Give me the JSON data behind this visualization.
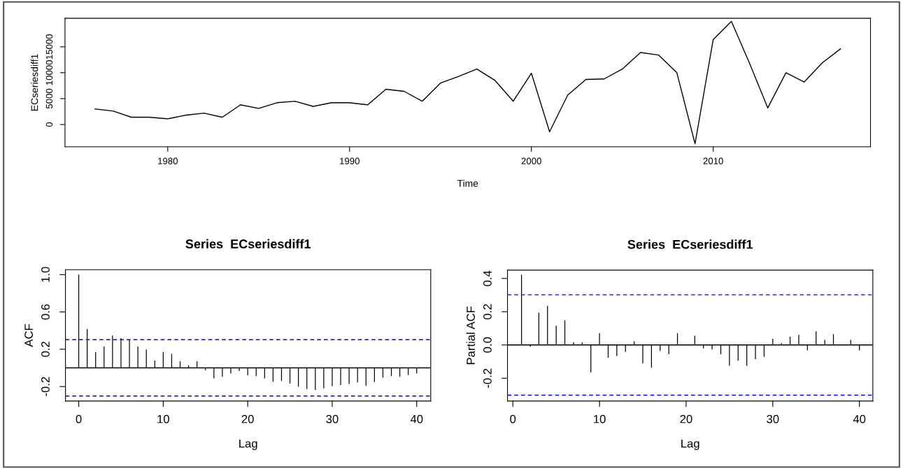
{
  "chart_data": [
    {
      "type": "line",
      "xlabel": "Time",
      "ylabel": "ECseriesdiff1",
      "grid": false,
      "line_style": "solid",
      "x": [
        1976,
        1977,
        1978,
        1979,
        1980,
        1981,
        1982,
        1983,
        1984,
        1985,
        1986,
        1987,
        1988,
        1989,
        1990,
        1991,
        1992,
        1993,
        1994,
        1995,
        1996,
        1997,
        1998,
        1999,
        2000,
        2001,
        2002,
        2003,
        2004,
        2005,
        2006,
        2007,
        2008,
        2009,
        2010,
        2011,
        2012,
        2013,
        2014,
        2015,
        2016,
        2017
      ],
      "series": [
        {
          "color": "#000000",
          "values": [
            3000,
            2600,
            1400,
            1400,
            1100,
            1800,
            2200,
            1400,
            3800,
            3100,
            4200,
            4500,
            3500,
            4200,
            4200,
            3800,
            6800,
            6400,
            4500,
            8000,
            9300,
            10700,
            8500,
            4500,
            9900,
            -1400,
            5700,
            8700,
            8800,
            10700,
            13900,
            13400,
            10000,
            -3700,
            16400,
            19900,
            11800,
            3200,
            10000,
            8200,
            11900,
            14600
          ]
        }
      ],
      "xlim": [
        1974.35,
        2018.65
      ],
      "ylim": [
        -4300,
        20500
      ],
      "xticks": [
        1980,
        1990,
        2000,
        2010
      ],
      "yticks": [
        0,
        5000,
        10000,
        15000
      ]
    },
    {
      "type": "bar",
      "title": "Series  ECseriesdiff1",
      "xlabel": "Lag",
      "ylabel": "ACF",
      "grid": false,
      "x": [
        0,
        1,
        2,
        3,
        4,
        5,
        6,
        7,
        8,
        9,
        10,
        11,
        12,
        13,
        14,
        15,
        16,
        17,
        18,
        19,
        20,
        21,
        22,
        23,
        24,
        25,
        26,
        27,
        28,
        29,
        30,
        31,
        32,
        33,
        34,
        35,
        36,
        37,
        38,
        39,
        40
      ],
      "series": [
        {
          "color": "#000000",
          "values": [
            1.0,
            0.416,
            0.17,
            0.23,
            0.348,
            0.32,
            0.3,
            0.23,
            0.197,
            0.08,
            0.17,
            0.15,
            0.07,
            0.027,
            0.07,
            -0.025,
            -0.112,
            -0.096,
            -0.06,
            -0.033,
            -0.08,
            -0.088,
            -0.112,
            -0.148,
            -0.14,
            -0.167,
            -0.203,
            -0.227,
            -0.238,
            -0.219,
            -0.195,
            -0.184,
            -0.175,
            -0.156,
            -0.192,
            -0.151,
            -0.104,
            -0.088,
            -0.096,
            -0.077,
            -0.06
          ]
        }
      ],
      "xlim": [
        -1.57,
        41.66
      ],
      "ylim": [
        -0.355,
        1.053
      ],
      "xticks": [
        0,
        10,
        20,
        30,
        40
      ],
      "yticks": [
        {
          "value": -0.2,
          "label": "-0.2"
        },
        0.2,
        0.6,
        {
          "value": 1.0,
          "label": "1.0"
        }
      ],
      "ref_lines": [
        {
          "axis": "y",
          "value": 0,
          "color": "#000000",
          "line_style": "solid"
        },
        {
          "axis": "y",
          "value": 0.302,
          "color": "#0000ff",
          "line_style": "dashed"
        },
        {
          "axis": "y",
          "value": -0.302,
          "color": "#0000ff",
          "line_style": "dashed"
        }
      ]
    },
    {
      "type": "bar",
      "title": "Series  ECseriesdiff1",
      "xlabel": "Lag",
      "ylabel": "Partial ACF",
      "grid": false,
      "x": [
        1,
        2,
        3,
        4,
        5,
        6,
        7,
        8,
        9,
        10,
        11,
        12,
        13,
        14,
        15,
        16,
        17,
        18,
        19,
        20,
        21,
        22,
        23,
        24,
        25,
        26,
        27,
        28,
        29,
        30,
        31,
        32,
        33,
        34,
        35,
        36,
        37,
        38,
        39,
        40
      ],
      "series": [
        {
          "color": "#000000",
          "values": [
            0.422,
            -0.01,
            0.194,
            0.235,
            0.116,
            0.149,
            0.016,
            0.016,
            -0.165,
            0.071,
            -0.077,
            -0.066,
            -0.042,
            0.022,
            -0.111,
            -0.137,
            -0.037,
            -0.056,
            0.071,
            0.0,
            0.056,
            -0.021,
            -0.027,
            -0.056,
            -0.125,
            -0.095,
            -0.125,
            -0.085,
            -0.071,
            0.037,
            0.011,
            0.05,
            0.061,
            -0.032,
            0.082,
            0.031,
            0.066,
            0.0,
            0.031,
            -0.032
          ]
        }
      ],
      "xlim": [
        -0.62,
        41.55
      ],
      "ylim": [
        -0.337,
        0.45
      ],
      "xticks": [
        0,
        10,
        20,
        30,
        40
      ],
      "yticks": [
        {
          "value": -0.2,
          "label": "-0.2"
        },
        {
          "value": 0.0,
          "label": "0.0"
        },
        0.2,
        0.4
      ],
      "ref_lines": [
        {
          "axis": "y",
          "value": 0,
          "color": "#000000",
          "line_style": "solid"
        },
        {
          "axis": "y",
          "value": 0.302,
          "color": "#0000ff",
          "line_style": "dashed"
        },
        {
          "axis": "y",
          "value": -0.302,
          "color": "#0000ff",
          "line_style": "dashed"
        }
      ]
    }
  ]
}
